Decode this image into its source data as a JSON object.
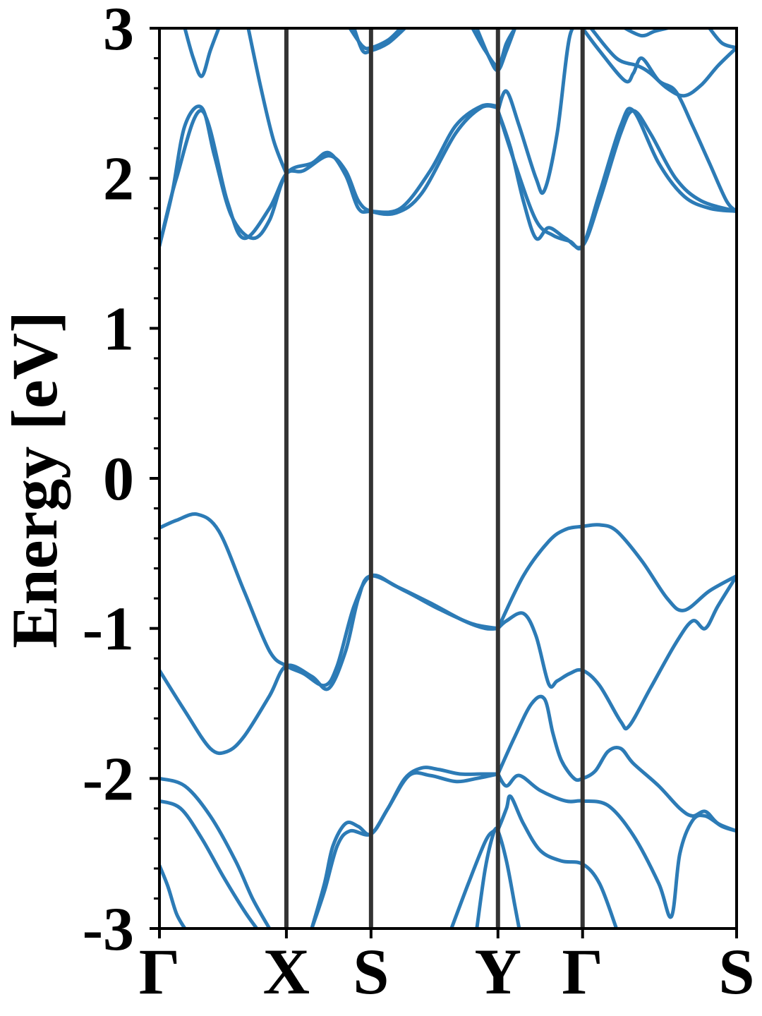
{
  "chart_data": {
    "type": "line",
    "title": "",
    "xlabel": "",
    "ylabel": "Energy [eV]",
    "ylim": [
      -3,
      3
    ],
    "yticks": [
      -3,
      -2,
      -1,
      0,
      1,
      2,
      3
    ],
    "ytick_labels": [
      "-3",
      "-2",
      "-1",
      "0",
      "1",
      "2",
      "3"
    ],
    "xlim": [
      0,
      6.82
    ],
    "kpoints": [
      {
        "label": "Γ",
        "x": 0.0
      },
      {
        "label": "X",
        "x": 1.5
      },
      {
        "label": "S",
        "x": 2.5
      },
      {
        "label": "Y",
        "x": 4.0
      },
      {
        "label": "Γ",
        "x": 5.0
      },
      {
        "label": "S",
        "x": 6.82
      }
    ],
    "grid": false,
    "line_color": "#2c7bb6",
    "series": [
      {
        "values": [
          [
            0,
            -0.33
          ],
          [
            0.2,
            -0.28
          ],
          [
            0.45,
            -0.24
          ],
          [
            0.7,
            -0.35
          ],
          [
            1.0,
            -0.75
          ],
          [
            1.3,
            -1.15
          ],
          [
            1.5,
            -1.25
          ],
          [
            1.7,
            -1.3
          ],
          [
            1.95,
            -1.38
          ],
          [
            2.1,
            -1.25
          ],
          [
            2.3,
            -0.85
          ],
          [
            2.5,
            -0.65
          ],
          [
            2.8,
            -0.72
          ],
          [
            3.2,
            -0.83
          ],
          [
            3.6,
            -0.95
          ],
          [
            3.85,
            -1.0
          ],
          [
            4.0,
            -1.0
          ]
        ]
      },
      {
        "values": [
          [
            0,
            -1.28
          ],
          [
            0.3,
            -1.55
          ],
          [
            0.6,
            -1.8
          ],
          [
            0.8,
            -1.82
          ],
          [
            1.0,
            -1.72
          ],
          [
            1.3,
            -1.45
          ],
          [
            1.5,
            -1.25
          ],
          [
            1.8,
            -1.32
          ],
          [
            2.0,
            -1.4
          ],
          [
            2.2,
            -1.15
          ],
          [
            2.35,
            -0.8
          ],
          [
            2.5,
            -0.65
          ],
          [
            2.9,
            -0.75
          ],
          [
            3.3,
            -0.87
          ],
          [
            3.7,
            -0.97
          ],
          [
            4.0,
            -1.0
          ]
        ]
      },
      {
        "values": [
          [
            4.0,
            -1.0
          ],
          [
            4.1,
            -0.95
          ],
          [
            4.3,
            -0.9
          ],
          [
            4.45,
            -1.05
          ],
          [
            4.6,
            -1.37
          ],
          [
            4.7,
            -1.35
          ],
          [
            4.85,
            -1.3
          ],
          [
            5.0,
            -1.28
          ],
          [
            5.2,
            -1.38
          ],
          [
            5.45,
            -1.62
          ],
          [
            5.55,
            -1.65
          ],
          [
            5.8,
            -1.4
          ],
          [
            6.1,
            -1.1
          ],
          [
            6.3,
            -0.95
          ],
          [
            6.45,
            -1.0
          ],
          [
            6.6,
            -0.85
          ],
          [
            6.82,
            -0.65
          ]
        ]
      },
      {
        "values": [
          [
            4.0,
            -1.0
          ],
          [
            4.3,
            -0.65
          ],
          [
            4.6,
            -0.42
          ],
          [
            4.8,
            -0.34
          ],
          [
            5.0,
            -0.32
          ],
          [
            5.2,
            -0.31
          ],
          [
            5.4,
            -0.35
          ],
          [
            5.7,
            -0.55
          ],
          [
            6.0,
            -0.8
          ],
          [
            6.2,
            -0.88
          ],
          [
            6.5,
            -0.75
          ],
          [
            6.82,
            -0.65
          ]
        ]
      },
      {
        "values": [
          [
            0,
            -2.0
          ],
          [
            0.3,
            -2.05
          ],
          [
            0.6,
            -2.25
          ],
          [
            0.9,
            -2.55
          ],
          [
            1.1,
            -2.8
          ],
          [
            1.3,
            -3.0
          ]
        ]
      },
      {
        "values": [
          [
            0,
            -2.15
          ],
          [
            0.25,
            -2.2
          ],
          [
            0.5,
            -2.4
          ],
          [
            0.75,
            -2.65
          ],
          [
            1.0,
            -2.88
          ],
          [
            1.15,
            -3.0
          ]
        ]
      },
      {
        "values": [
          [
            0,
            -2.58
          ],
          [
            0.1,
            -2.72
          ],
          [
            0.2,
            -2.9
          ],
          [
            0.3,
            -3.0
          ]
        ]
      },
      {
        "values": [
          [
            1.8,
            -3.0
          ],
          [
            1.95,
            -2.7
          ],
          [
            2.05,
            -2.45
          ],
          [
            2.2,
            -2.3
          ],
          [
            2.35,
            -2.32
          ],
          [
            2.5,
            -2.37
          ],
          [
            2.7,
            -2.2
          ],
          [
            2.9,
            -2.0
          ],
          [
            3.1,
            -1.93
          ],
          [
            3.3,
            -1.94
          ],
          [
            3.55,
            -1.97
          ],
          [
            3.8,
            -1.97
          ],
          [
            4.0,
            -1.97
          ]
        ]
      },
      {
        "values": [
          [
            1.8,
            -3.0
          ],
          [
            1.95,
            -2.75
          ],
          [
            2.1,
            -2.45
          ],
          [
            2.25,
            -2.35
          ],
          [
            2.5,
            -2.37
          ],
          [
            2.7,
            -2.2
          ],
          [
            2.95,
            -1.98
          ],
          [
            3.2,
            -1.98
          ],
          [
            3.5,
            -2.02
          ],
          [
            3.75,
            -2.0
          ],
          [
            4.0,
            -1.97
          ]
        ]
      },
      {
        "values": [
          [
            3.45,
            -3.0
          ],
          [
            3.65,
            -2.7
          ],
          [
            3.85,
            -2.42
          ],
          [
            3.95,
            -2.35
          ],
          [
            4.0,
            -2.35
          ],
          [
            4.1,
            -2.55
          ],
          [
            4.2,
            -2.85
          ],
          [
            4.25,
            -3.0
          ]
        ]
      },
      {
        "values": [
          [
            3.75,
            -3.0
          ],
          [
            3.85,
            -2.6
          ],
          [
            3.95,
            -2.36
          ],
          [
            4.0,
            -2.34
          ],
          [
            4.1,
            -2.2
          ],
          [
            4.15,
            -2.12
          ],
          [
            4.3,
            -2.3
          ],
          [
            4.5,
            -2.48
          ],
          [
            4.75,
            -2.55
          ],
          [
            5.0,
            -2.57
          ],
          [
            5.2,
            -2.7
          ],
          [
            5.4,
            -3.0
          ]
        ]
      },
      {
        "values": [
          [
            4.0,
            -1.97
          ],
          [
            4.2,
            -1.72
          ],
          [
            4.4,
            -1.5
          ],
          [
            4.55,
            -1.47
          ],
          [
            4.65,
            -1.7
          ],
          [
            4.75,
            -1.88
          ],
          [
            4.9,
            -2.0
          ],
          [
            5.0,
            -2.0
          ],
          [
            5.15,
            -1.95
          ],
          [
            5.3,
            -1.82
          ],
          [
            5.45,
            -1.8
          ],
          [
            5.6,
            -1.9
          ],
          [
            5.9,
            -2.05
          ],
          [
            6.15,
            -2.2
          ],
          [
            6.3,
            -2.25
          ],
          [
            6.45,
            -2.22
          ],
          [
            6.6,
            -2.3
          ],
          [
            6.82,
            -2.35
          ]
        ]
      },
      {
        "values": [
          [
            4.0,
            -1.97
          ],
          [
            4.1,
            -2.05
          ],
          [
            4.25,
            -1.98
          ],
          [
            4.5,
            -2.08
          ],
          [
            4.8,
            -2.15
          ],
          [
            5.0,
            -2.15
          ],
          [
            5.3,
            -2.18
          ],
          [
            5.6,
            -2.38
          ],
          [
            5.9,
            -2.7
          ],
          [
            6.05,
            -2.92
          ],
          [
            6.15,
            -2.5
          ],
          [
            6.3,
            -2.28
          ],
          [
            6.45,
            -2.25
          ],
          [
            6.65,
            -2.32
          ],
          [
            6.82,
            -2.35
          ]
        ]
      },
      {
        "values": [
          [
            0,
            1.55
          ],
          [
            0.2,
            2.0
          ],
          [
            0.5,
            2.45
          ],
          [
            0.8,
            1.85
          ],
          [
            1.0,
            1.6
          ],
          [
            1.3,
            1.8
          ],
          [
            1.5,
            2.03
          ],
          [
            1.7,
            2.05
          ],
          [
            2.0,
            2.15
          ],
          [
            2.2,
            2.05
          ],
          [
            2.35,
            1.85
          ],
          [
            2.5,
            1.78
          ],
          [
            2.8,
            1.77
          ],
          [
            3.1,
            1.9
          ],
          [
            3.5,
            2.3
          ],
          [
            3.8,
            2.47
          ],
          [
            4.0,
            2.47
          ]
        ]
      },
      {
        "values": [
          [
            0,
            1.55
          ],
          [
            0.15,
            1.9
          ],
          [
            0.3,
            2.35
          ],
          [
            0.5,
            2.47
          ],
          [
            0.65,
            2.15
          ],
          [
            0.85,
            1.75
          ],
          [
            1.1,
            1.6
          ],
          [
            1.3,
            1.72
          ],
          [
            1.5,
            2.03
          ],
          [
            1.8,
            2.1
          ],
          [
            2.0,
            2.17
          ],
          [
            2.2,
            2.02
          ],
          [
            2.35,
            1.8
          ],
          [
            2.5,
            1.78
          ],
          [
            2.85,
            1.8
          ],
          [
            3.2,
            2.05
          ],
          [
            3.5,
            2.35
          ],
          [
            3.8,
            2.48
          ],
          [
            4.0,
            2.48
          ]
        ]
      },
      {
        "values": [
          [
            4.0,
            2.45
          ],
          [
            4.1,
            2.58
          ],
          [
            4.25,
            2.35
          ],
          [
            4.45,
            2.0
          ],
          [
            4.55,
            1.92
          ],
          [
            4.7,
            2.3
          ],
          [
            4.85,
            2.95
          ],
          [
            5.0,
            3.0
          ]
        ]
      },
      {
        "values": [
          [
            4.0,
            2.45
          ],
          [
            4.15,
            2.2
          ],
          [
            4.3,
            1.85
          ],
          [
            4.45,
            1.6
          ],
          [
            4.6,
            1.67
          ],
          [
            4.8,
            1.6
          ],
          [
            5.0,
            1.55
          ],
          [
            5.2,
            1.85
          ],
          [
            5.45,
            2.3
          ],
          [
            5.6,
            2.45
          ],
          [
            5.8,
            2.3
          ],
          [
            6.1,
            2.0
          ],
          [
            6.4,
            1.85
          ],
          [
            6.82,
            1.78
          ]
        ]
      },
      {
        "values": [
          [
            4.0,
            2.45
          ],
          [
            4.2,
            2.1
          ],
          [
            4.45,
            1.72
          ],
          [
            4.65,
            1.62
          ],
          [
            4.85,
            1.58
          ],
          [
            5.0,
            1.55
          ],
          [
            5.2,
            1.9
          ],
          [
            5.45,
            2.35
          ],
          [
            5.6,
            2.45
          ],
          [
            5.9,
            2.1
          ],
          [
            6.2,
            1.88
          ],
          [
            6.5,
            1.8
          ],
          [
            6.82,
            1.78
          ]
        ]
      },
      {
        "values": [
          [
            0.3,
            3.0
          ],
          [
            0.4,
            2.8
          ],
          [
            0.5,
            2.68
          ],
          [
            0.6,
            2.85
          ],
          [
            0.7,
            3.0
          ]
        ]
      },
      {
        "values": [
          [
            1.05,
            3.0
          ],
          [
            1.2,
            2.6
          ],
          [
            1.35,
            2.25
          ],
          [
            1.5,
            2.03
          ]
        ]
      },
      {
        "values": [
          [
            2.3,
            3.0
          ],
          [
            2.4,
            2.85
          ],
          [
            2.5,
            2.85
          ],
          [
            2.7,
            2.9
          ],
          [
            2.9,
            3.0
          ]
        ]
      },
      {
        "values": [
          [
            2.25,
            3.0
          ],
          [
            2.4,
            2.88
          ],
          [
            2.5,
            2.87
          ],
          [
            2.7,
            2.92
          ],
          [
            2.85,
            3.0
          ]
        ]
      },
      {
        "values": [
          [
            3.75,
            3.0
          ],
          [
            3.9,
            2.8
          ],
          [
            4.0,
            2.72
          ],
          [
            4.1,
            2.85
          ],
          [
            4.2,
            3.0
          ]
        ]
      },
      {
        "values": [
          [
            3.7,
            3.0
          ],
          [
            3.85,
            2.85
          ],
          [
            4.0,
            2.75
          ],
          [
            4.1,
            2.9
          ],
          [
            4.2,
            3.0
          ]
        ]
      },
      {
        "values": [
          [
            5.0,
            3.0
          ],
          [
            5.2,
            2.85
          ],
          [
            5.5,
            2.65
          ],
          [
            5.6,
            2.7
          ],
          [
            5.7,
            2.8
          ],
          [
            5.9,
            2.65
          ],
          [
            6.1,
            2.58
          ],
          [
            6.3,
            2.35
          ],
          [
            6.5,
            2.1
          ],
          [
            6.7,
            1.85
          ],
          [
            6.82,
            1.78
          ]
        ]
      },
      {
        "values": [
          [
            5.1,
            3.0
          ],
          [
            5.4,
            2.8
          ],
          [
            5.65,
            2.75
          ],
          [
            5.8,
            2.7
          ],
          [
            6.0,
            2.6
          ],
          [
            6.2,
            2.55
          ],
          [
            6.4,
            2.62
          ],
          [
            6.6,
            2.75
          ],
          [
            6.82,
            2.87
          ]
        ]
      },
      {
        "values": [
          [
            5.5,
            3.0
          ],
          [
            5.7,
            2.95
          ],
          [
            5.85,
            2.98
          ],
          [
            6.0,
            3.0
          ]
        ]
      },
      {
        "values": [
          [
            6.5,
            3.0
          ],
          [
            6.65,
            2.9
          ],
          [
            6.82,
            2.87
          ]
        ]
      }
    ]
  }
}
